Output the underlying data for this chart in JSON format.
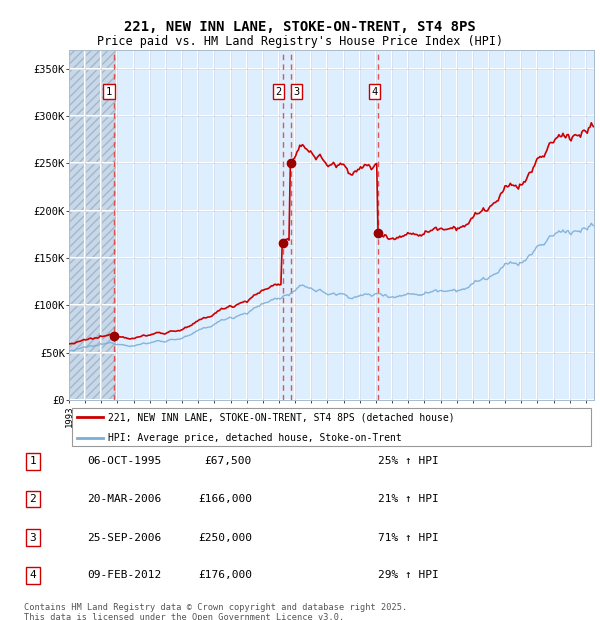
{
  "title": "221, NEW INN LANE, STOKE-ON-TRENT, ST4 8PS",
  "subtitle": "Price paid vs. HM Land Registry's House Price Index (HPI)",
  "ylim": [
    0,
    370000
  ],
  "xlim_start": 1993.0,
  "xlim_end": 2025.5,
  "sale_points": [
    {
      "label": "1",
      "date": 1995.77,
      "price": 67500
    },
    {
      "label": "2",
      "date": 2006.22,
      "price": 166000
    },
    {
      "label": "3",
      "date": 2006.73,
      "price": 250000
    },
    {
      "label": "4",
      "date": 2012.11,
      "price": 176000
    }
  ],
  "legend_entries": [
    {
      "color": "#cc0000",
      "label": "221, NEW INN LANE, STOKE-ON-TRENT, ST4 8PS (detached house)"
    },
    {
      "color": "#7aaed6",
      "label": "HPI: Average price, detached house, Stoke-on-Trent"
    }
  ],
  "table_rows": [
    {
      "num": "1",
      "date": "06-OCT-1995",
      "price": "£67,500",
      "hpi": "25% ↑ HPI"
    },
    {
      "num": "2",
      "date": "20-MAR-2006",
      "price": "£166,000",
      "hpi": "21% ↑ HPI"
    },
    {
      "num": "3",
      "date": "25-SEP-2006",
      "price": "£250,000",
      "hpi": "71% ↑ HPI"
    },
    {
      "num": "4",
      "date": "09-FEB-2012",
      "price": "£176,000",
      "hpi": "29% ↑ HPI"
    }
  ],
  "footer": "Contains HM Land Registry data © Crown copyright and database right 2025.\nThis data is licensed under the Open Government Licence v3.0.",
  "red_line_color": "#cc0000",
  "blue_line_color": "#7aaed6",
  "marker_color": "#990000",
  "vline_color": "#dd4444",
  "label_box_edge": "#cc0000",
  "hatch_end_year": 1996.0,
  "ytick_vals": [
    0,
    50000,
    100000,
    150000,
    200000,
    250000,
    300000,
    350000
  ],
  "ytick_labels": [
    "£0",
    "£50K",
    "£100K",
    "£150K",
    "£200K",
    "£250K",
    "£300K",
    "£350K"
  ]
}
